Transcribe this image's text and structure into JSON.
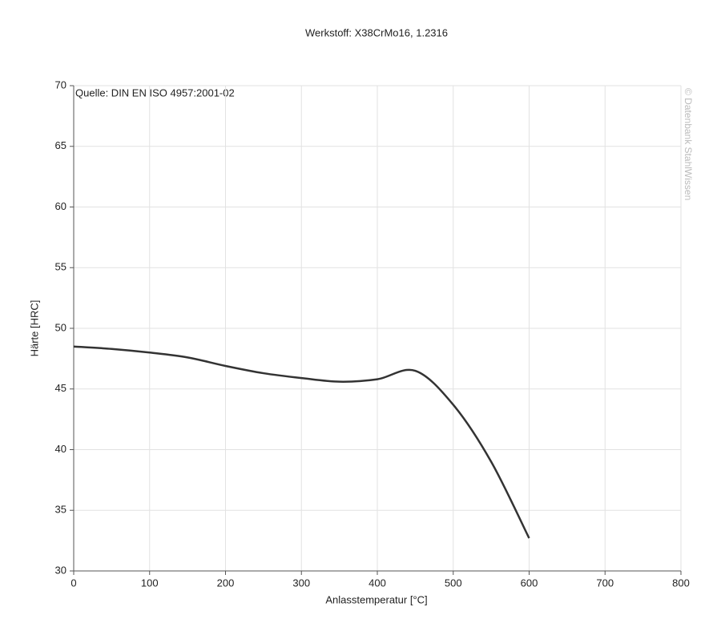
{
  "chart_data": {
    "type": "line",
    "title": "Werkstoff: X38CrMo16, 1.2316",
    "annotation": "Quelle: DIN EN ISO 4957:2001-02",
    "watermark": "© Datenbank StahlWissen",
    "xlabel": "Anlasstemperatur [°C]",
    "ylabel": "Härte [HRC]",
    "x": [
      0,
      50,
      100,
      150,
      200,
      250,
      300,
      350,
      400,
      450,
      500,
      550,
      600
    ],
    "series": [
      {
        "color": "#333333",
        "values": [
          48.5,
          48.3,
          48.0,
          47.6,
          46.9,
          46.3,
          45.9,
          45.6,
          45.8,
          46.5,
          43.7,
          39.0,
          32.7
        ]
      }
    ],
    "xlim": [
      0,
      800
    ],
    "xticks": [
      0,
      100,
      200,
      300,
      400,
      500,
      600,
      700,
      800
    ],
    "ylim": [
      30,
      70
    ],
    "yticks": [
      30,
      35,
      40,
      45,
      50,
      55,
      60,
      65,
      70
    ],
    "grid": true
  }
}
